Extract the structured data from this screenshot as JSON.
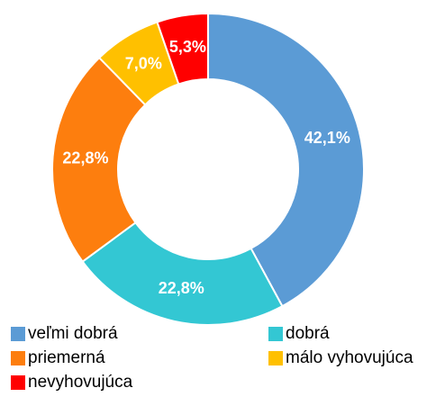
{
  "chart_data": {
    "type": "pie",
    "categories": [
      "veľmi dobrá",
      "dobrá",
      "priemerná",
      "málo vyhovujúca",
      "nevyhovujúca"
    ],
    "values": [
      42.1,
      22.8,
      22.8,
      7.0,
      5.3
    ],
    "value_labels": [
      "42,1%",
      "22,8%",
      "22,8%",
      "7,0%",
      "5,3%"
    ],
    "colors": [
      "#5b9bd5",
      "#33c7d3",
      "#fd7e0e",
      "#ffc000",
      "#ff0000"
    ],
    "donut": true,
    "legend": "bottom"
  }
}
